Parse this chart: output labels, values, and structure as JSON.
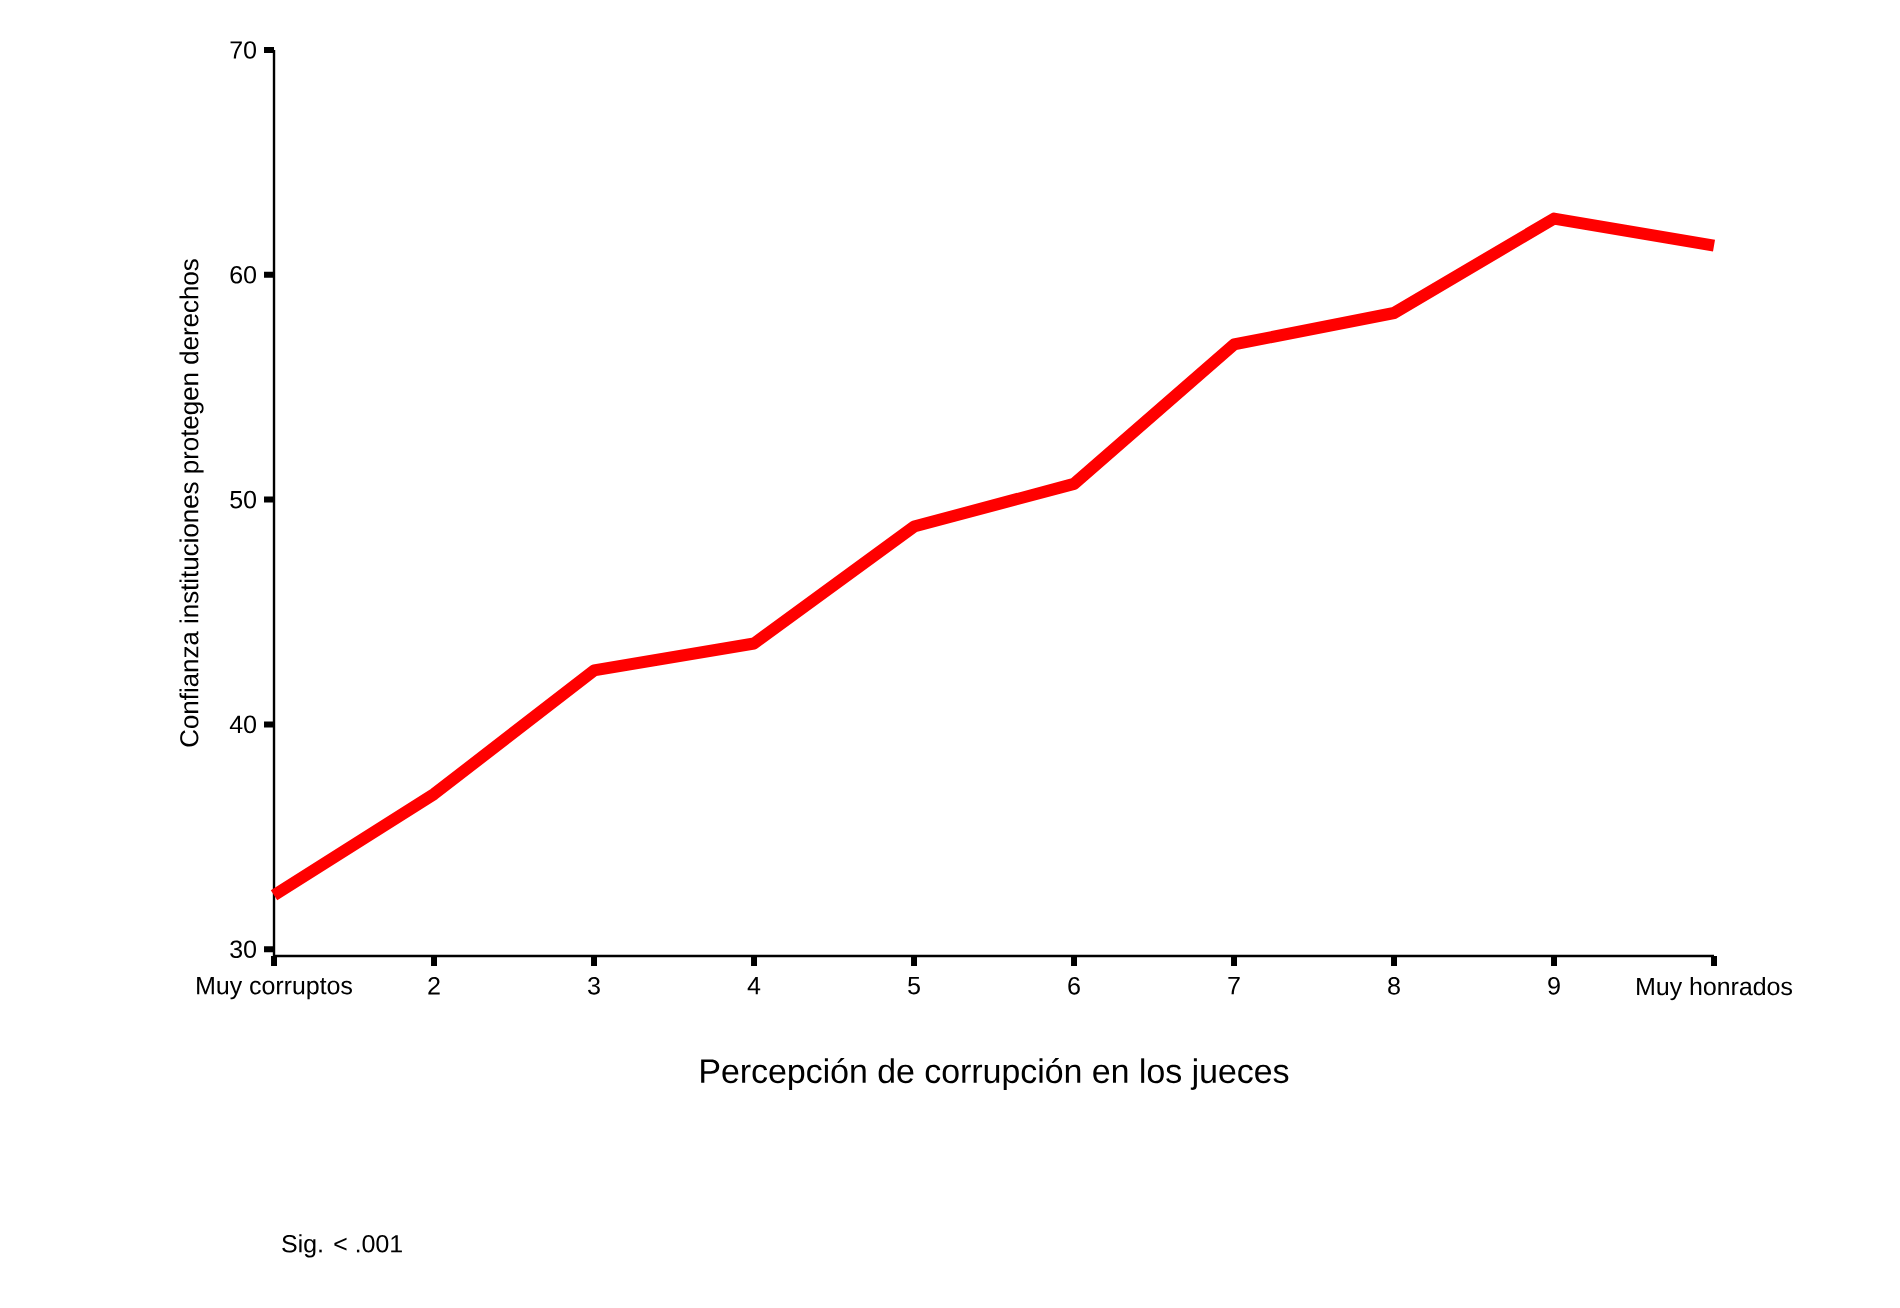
{
  "chart_data": {
    "type": "line",
    "xlabel": "Percepción de corrupción en los jueces",
    "ylabel": "Confianza instituciones protegen derechos",
    "annotations": [
      "Sig. < .001"
    ],
    "categories": [
      "Muy corruptos",
      "2",
      "3",
      "4",
      "5",
      "6",
      "7",
      "8",
      "9",
      "Muy honrados"
    ],
    "series": [
      {
        "color": "#ff0000",
        "values": [
          32.4,
          36.9,
          42.4,
          43.6,
          48.8,
          50.7,
          56.9,
          58.3,
          62.5,
          61.3
        ]
      }
    ],
    "ylim": [
      29.7,
      70
    ],
    "yticks": [
      30,
      40,
      50,
      60,
      70
    ],
    "grid": false,
    "marker": "none",
    "line_style": "solid"
  }
}
